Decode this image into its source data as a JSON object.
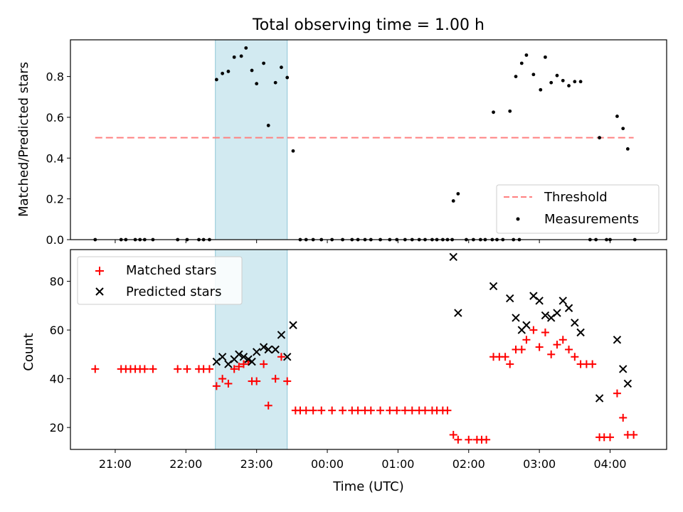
{
  "chart_data": [
    {
      "type": "scatter",
      "title": "Total observing time = 1.00 h",
      "xlabel": "",
      "ylabel": "Matched/Predicted stars",
      "xlim": [
        "20:22",
        "04:48"
      ],
      "ylim": [
        0,
        0.98
      ],
      "yticks": [
        "0.0",
        "0.2",
        "0.4",
        "0.6",
        "0.8"
      ],
      "grid": false,
      "legend_position": "lower-right",
      "shaded_interval": {
        "start": "22:25",
        "end": "23:26",
        "color": "#add8e6"
      },
      "threshold": {
        "name": "Threshold",
        "value": 0.5,
        "x_start": "20:43",
        "x_end": "04:20",
        "color": "#ff8080",
        "style": "dashed"
      },
      "series": [
        {
          "name": "Measurements",
          "color": "#000000",
          "marker": "dot",
          "points": [
            {
              "x": "20:43",
              "y": 0
            },
            {
              "x": "21:05",
              "y": 0
            },
            {
              "x": "21:09",
              "y": 0
            },
            {
              "x": "21:17",
              "y": 0
            },
            {
              "x": "21:21",
              "y": 0
            },
            {
              "x": "21:25",
              "y": 0
            },
            {
              "x": "21:32",
              "y": 0
            },
            {
              "x": "21:53",
              "y": 0
            },
            {
              "x": "22:01",
              "y": 0
            },
            {
              "x": "22:11",
              "y": 0
            },
            {
              "x": "22:15",
              "y": 0
            },
            {
              "x": "22:20",
              "y": 0
            },
            {
              "x": "22:26",
              "y": 0.785
            },
            {
              "x": "22:31",
              "y": 0.815
            },
            {
              "x": "22:36",
              "y": 0.825
            },
            {
              "x": "22:41",
              "y": 0.895
            },
            {
              "x": "22:47",
              "y": 0.9
            },
            {
              "x": "22:51",
              "y": 0.94
            },
            {
              "x": "22:56",
              "y": 0.83
            },
            {
              "x": "23:00",
              "y": 0.765
            },
            {
              "x": "23:06",
              "y": 0.865
            },
            {
              "x": "23:10",
              "y": 0.56
            },
            {
              "x": "23:16",
              "y": 0.77
            },
            {
              "x": "23:21",
              "y": 0.845
            },
            {
              "x": "23:26",
              "y": 0.795
            },
            {
              "x": "23:31",
              "y": 0.435
            },
            {
              "x": "23:37",
              "y": 0
            },
            {
              "x": "23:42",
              "y": 0
            },
            {
              "x": "23:48",
              "y": 0
            },
            {
              "x": "23:55",
              "y": 0
            },
            {
              "x": "00:04",
              "y": 0
            },
            {
              "x": "00:13",
              "y": 0
            },
            {
              "x": "00:21",
              "y": 0
            },
            {
              "x": "00:26",
              "y": 0
            },
            {
              "x": "00:32",
              "y": 0
            },
            {
              "x": "00:37",
              "y": 0
            },
            {
              "x": "00:45",
              "y": 0
            },
            {
              "x": "00:53",
              "y": 0
            },
            {
              "x": "00:59",
              "y": 0
            },
            {
              "x": "01:06",
              "y": 0
            },
            {
              "x": "01:12",
              "y": 0
            },
            {
              "x": "01:18",
              "y": 0
            },
            {
              "x": "01:23",
              "y": 0
            },
            {
              "x": "01:29",
              "y": 0
            },
            {
              "x": "01:33",
              "y": 0
            },
            {
              "x": "01:38",
              "y": 0
            },
            {
              "x": "01:42",
              "y": 0
            },
            {
              "x": "01:46",
              "y": 0
            },
            {
              "x": "01:47",
              "y": 0.19
            },
            {
              "x": "01:51",
              "y": 0.225
            },
            {
              "x": "01:58",
              "y": 0
            },
            {
              "x": "02:04",
              "y": 0
            },
            {
              "x": "02:10",
              "y": 0
            },
            {
              "x": "02:14",
              "y": 0
            },
            {
              "x": "02:20",
              "y": 0
            },
            {
              "x": "02:24",
              "y": 0
            },
            {
              "x": "02:29",
              "y": 0
            },
            {
              "x": "02:38",
              "y": 0
            },
            {
              "x": "02:43",
              "y": 0
            },
            {
              "x": "02:21",
              "y": 0.625
            },
            {
              "x": "02:35",
              "y": 0.63
            },
            {
              "x": "02:40",
              "y": 0.8
            },
            {
              "x": "02:45",
              "y": 0.865
            },
            {
              "x": "02:49",
              "y": 0.905
            },
            {
              "x": "02:55",
              "y": 0.81
            },
            {
              "x": "03:01",
              "y": 0.735
            },
            {
              "x": "03:05",
              "y": 0.895
            },
            {
              "x": "03:10",
              "y": 0.77
            },
            {
              "x": "03:15",
              "y": 0.805
            },
            {
              "x": "03:20",
              "y": 0.78
            },
            {
              "x": "03:25",
              "y": 0.755
            },
            {
              "x": "03:30",
              "y": 0.775
            },
            {
              "x": "03:35",
              "y": 0.775
            },
            {
              "x": "03:43",
              "y": 0
            },
            {
              "x": "03:48",
              "y": 0
            },
            {
              "x": "03:57",
              "y": 0
            },
            {
              "x": "04:00",
              "y": 0
            },
            {
              "x": "04:21",
              "y": 0
            },
            {
              "x": "03:51",
              "y": 0.5
            },
            {
              "x": "04:06",
              "y": 0.605
            },
            {
              "x": "04:11",
              "y": 0.545
            },
            {
              "x": "04:15",
              "y": 0.445
            }
          ]
        }
      ]
    },
    {
      "type": "scatter",
      "title": "",
      "xlabel": "Time (UTC)",
      "ylabel": "Count",
      "xlim": [
        "20:22",
        "04:48"
      ],
      "ylim": [
        11,
        93
      ],
      "xticks": [
        "21:00",
        "22:00",
        "23:00",
        "00:00",
        "01:00",
        "02:00",
        "03:00",
        "04:00"
      ],
      "yticks": [
        "20",
        "40",
        "60",
        "80"
      ],
      "grid": false,
      "legend_position": "upper-left",
      "shaded_interval": {
        "start": "22:25",
        "end": "23:26",
        "color": "#add8e6"
      },
      "series": [
        {
          "name": "Matched stars",
          "color": "#ff0000",
          "marker": "plus",
          "points": [
            {
              "x": "20:43",
              "y": 44
            },
            {
              "x": "21:05",
              "y": 44
            },
            {
              "x": "21:09",
              "y": 44
            },
            {
              "x": "21:13",
              "y": 44
            },
            {
              "x": "21:17",
              "y": 44
            },
            {
              "x": "21:21",
              "y": 44
            },
            {
              "x": "21:25",
              "y": 44
            },
            {
              "x": "21:32",
              "y": 44
            },
            {
              "x": "21:53",
              "y": 44
            },
            {
              "x": "22:01",
              "y": 44
            },
            {
              "x": "22:11",
              "y": 44
            },
            {
              "x": "22:15",
              "y": 44
            },
            {
              "x": "22:20",
              "y": 44
            },
            {
              "x": "22:26",
              "y": 37
            },
            {
              "x": "22:31",
              "y": 40
            },
            {
              "x": "22:36",
              "y": 38
            },
            {
              "x": "22:41",
              "y": 44
            },
            {
              "x": "22:45",
              "y": 45
            },
            {
              "x": "22:49",
              "y": 46
            },
            {
              "x": "22:53",
              "y": 47
            },
            {
              "x": "22:56",
              "y": 39
            },
            {
              "x": "23:00",
              "y": 39
            },
            {
              "x": "23:06",
              "y": 46
            },
            {
              "x": "23:10",
              "y": 29
            },
            {
              "x": "23:16",
              "y": 40
            },
            {
              "x": "23:21",
              "y": 49
            },
            {
              "x": "23:26",
              "y": 39
            },
            {
              "x": "23:33",
              "y": 27
            },
            {
              "x": "23:37",
              "y": 27
            },
            {
              "x": "23:42",
              "y": 27
            },
            {
              "x": "23:48",
              "y": 27
            },
            {
              "x": "23:55",
              "y": 27
            },
            {
              "x": "00:04",
              "y": 27
            },
            {
              "x": "00:13",
              "y": 27
            },
            {
              "x": "00:21",
              "y": 27
            },
            {
              "x": "00:26",
              "y": 27
            },
            {
              "x": "00:32",
              "y": 27
            },
            {
              "x": "00:37",
              "y": 27
            },
            {
              "x": "00:45",
              "y": 27
            },
            {
              "x": "00:53",
              "y": 27
            },
            {
              "x": "00:59",
              "y": 27
            },
            {
              "x": "01:06",
              "y": 27
            },
            {
              "x": "01:12",
              "y": 27
            },
            {
              "x": "01:18",
              "y": 27
            },
            {
              "x": "01:23",
              "y": 27
            },
            {
              "x": "01:29",
              "y": 27
            },
            {
              "x": "01:33",
              "y": 27
            },
            {
              "x": "01:38",
              "y": 27
            },
            {
              "x": "01:42",
              "y": 27
            },
            {
              "x": "01:47",
              "y": 17
            },
            {
              "x": "01:51",
              "y": 15
            },
            {
              "x": "02:00",
              "y": 15
            },
            {
              "x": "02:07",
              "y": 15
            },
            {
              "x": "02:11",
              "y": 15
            },
            {
              "x": "02:15",
              "y": 15
            },
            {
              "x": "02:21",
              "y": 49
            },
            {
              "x": "02:26",
              "y": 49
            },
            {
              "x": "02:31",
              "y": 49
            },
            {
              "x": "02:35",
              "y": 46
            },
            {
              "x": "02:40",
              "y": 52
            },
            {
              "x": "02:45",
              "y": 52
            },
            {
              "x": "02:49",
              "y": 56
            },
            {
              "x": "02:55",
              "y": 60
            },
            {
              "x": "03:00",
              "y": 53
            },
            {
              "x": "03:05",
              "y": 59
            },
            {
              "x": "03:10",
              "y": 50
            },
            {
              "x": "03:15",
              "y": 54
            },
            {
              "x": "03:20",
              "y": 56
            },
            {
              "x": "03:25",
              "y": 52
            },
            {
              "x": "03:30",
              "y": 49
            },
            {
              "x": "03:35",
              "y": 46
            },
            {
              "x": "03:40",
              "y": 46
            },
            {
              "x": "03:45",
              "y": 46
            },
            {
              "x": "03:51",
              "y": 16
            },
            {
              "x": "03:55",
              "y": 16
            },
            {
              "x": "04:00",
              "y": 16
            },
            {
              "x": "04:06",
              "y": 34
            },
            {
              "x": "04:11",
              "y": 24
            },
            {
              "x": "04:15",
              "y": 17
            },
            {
              "x": "04:20",
              "y": 17
            }
          ]
        },
        {
          "name": "Predicted stars",
          "color": "#000000",
          "marker": "x",
          "points": [
            {
              "x": "22:26",
              "y": 47
            },
            {
              "x": "22:31",
              "y": 49
            },
            {
              "x": "22:36",
              "y": 46
            },
            {
              "x": "22:41",
              "y": 48
            },
            {
              "x": "22:45",
              "y": 50
            },
            {
              "x": "22:49",
              "y": 49
            },
            {
              "x": "22:53",
              "y": 48
            },
            {
              "x": "22:56",
              "y": 47
            },
            {
              "x": "23:00",
              "y": 51
            },
            {
              "x": "23:06",
              "y": 53
            },
            {
              "x": "23:10",
              "y": 52
            },
            {
              "x": "23:16",
              "y": 52
            },
            {
              "x": "23:21",
              "y": 58
            },
            {
              "x": "23:26",
              "y": 49
            },
            {
              "x": "23:31",
              "y": 62
            },
            {
              "x": "01:47",
              "y": 90
            },
            {
              "x": "01:51",
              "y": 67
            },
            {
              "x": "02:21",
              "y": 78
            },
            {
              "x": "02:35",
              "y": 73
            },
            {
              "x": "02:40",
              "y": 65
            },
            {
              "x": "02:45",
              "y": 60
            },
            {
              "x": "02:49",
              "y": 62
            },
            {
              "x": "02:55",
              "y": 74
            },
            {
              "x": "03:00",
              "y": 72
            },
            {
              "x": "03:05",
              "y": 66
            },
            {
              "x": "03:10",
              "y": 65
            },
            {
              "x": "03:15",
              "y": 67
            },
            {
              "x": "03:20",
              "y": 72
            },
            {
              "x": "03:25",
              "y": 69
            },
            {
              "x": "03:30",
              "y": 63
            },
            {
              "x": "03:35",
              "y": 59
            },
            {
              "x": "03:51",
              "y": 32
            },
            {
              "x": "04:06",
              "y": 56
            },
            {
              "x": "04:11",
              "y": 44
            },
            {
              "x": "04:15",
              "y": 38
            }
          ]
        }
      ]
    }
  ]
}
